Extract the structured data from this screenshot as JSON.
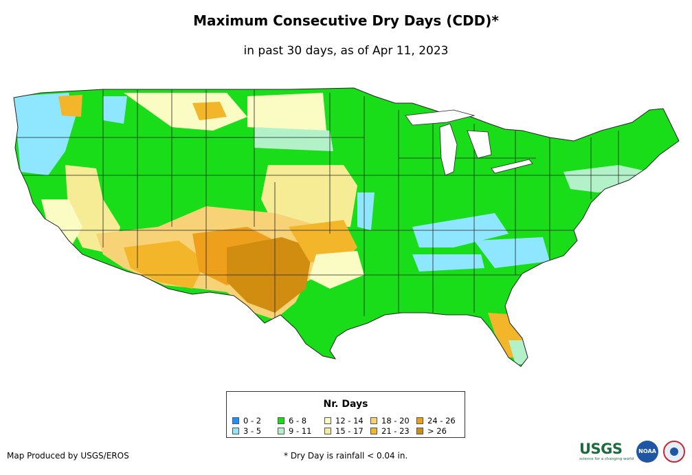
{
  "title": "Maximum Consecutive Dry Days (CDD)*",
  "subtitle": "in past 30 days, as of Apr 11, 2023",
  "legend": {
    "title": "Nr. Days",
    "items": [
      {
        "label": "0 - 2",
        "color": "#1e90ff"
      },
      {
        "label": "3 - 5",
        "color": "#8fe6ff"
      },
      {
        "label": "6 - 8",
        "color": "#19dd19"
      },
      {
        "label": "9 - 11",
        "color": "#b3f2c8"
      },
      {
        "label": "12 - 14",
        "color": "#fbfbc4"
      },
      {
        "label": "15 - 17",
        "color": "#f7ec96"
      },
      {
        "label": "18 - 20",
        "color": "#f8d277"
      },
      {
        "label": "21 - 23",
        "color": "#f3b52a"
      },
      {
        "label": "24 - 26",
        "color": "#ee9f1c"
      },
      {
        "label": "> 26",
        "color": "#d18d10"
      }
    ]
  },
  "footer": {
    "credit": "Map Produced by USGS/EROS",
    "note": "* Dry Day is rainfall < 0.04 in."
  },
  "logos": {
    "usgs": "USGS",
    "usgs_tagline": "science for a changing world",
    "noaa": "NOAA"
  }
}
